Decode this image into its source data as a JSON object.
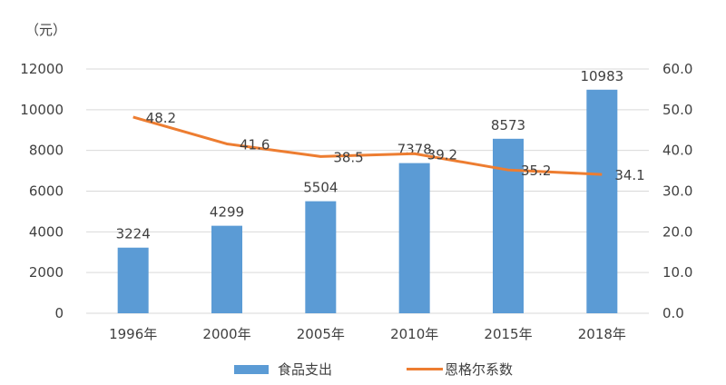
{
  "chart_data": {
    "type": "bar+line",
    "unit_label": "（元）",
    "categories": [
      "1996年",
      "2000年",
      "2005年",
      "2010年",
      "2015年",
      "2018年"
    ],
    "series": [
      {
        "name": "食品支出",
        "type": "bar",
        "axis": "left",
        "color": "#5b9bd5",
        "values": [
          3224,
          4299,
          5504,
          7378,
          8573,
          10983
        ]
      },
      {
        "name": "恩格尔系数",
        "type": "line",
        "axis": "right",
        "color": "#ed7d31",
        "values": [
          48.2,
          41.6,
          38.5,
          39.2,
          35.2,
          34.1
        ]
      }
    ],
    "left_axis": {
      "range": [
        0,
        12000
      ],
      "ticks": [
        "0",
        "2000",
        "4000",
        "6000",
        "8000",
        "10000",
        "12000"
      ]
    },
    "right_axis": {
      "range": [
        0,
        60
      ],
      "ticks": [
        "0.0",
        "10.0",
        "20.0",
        "30.0",
        "40.0",
        "50.0",
        "60.0"
      ]
    },
    "grid": true,
    "legend_position": "bottom"
  }
}
